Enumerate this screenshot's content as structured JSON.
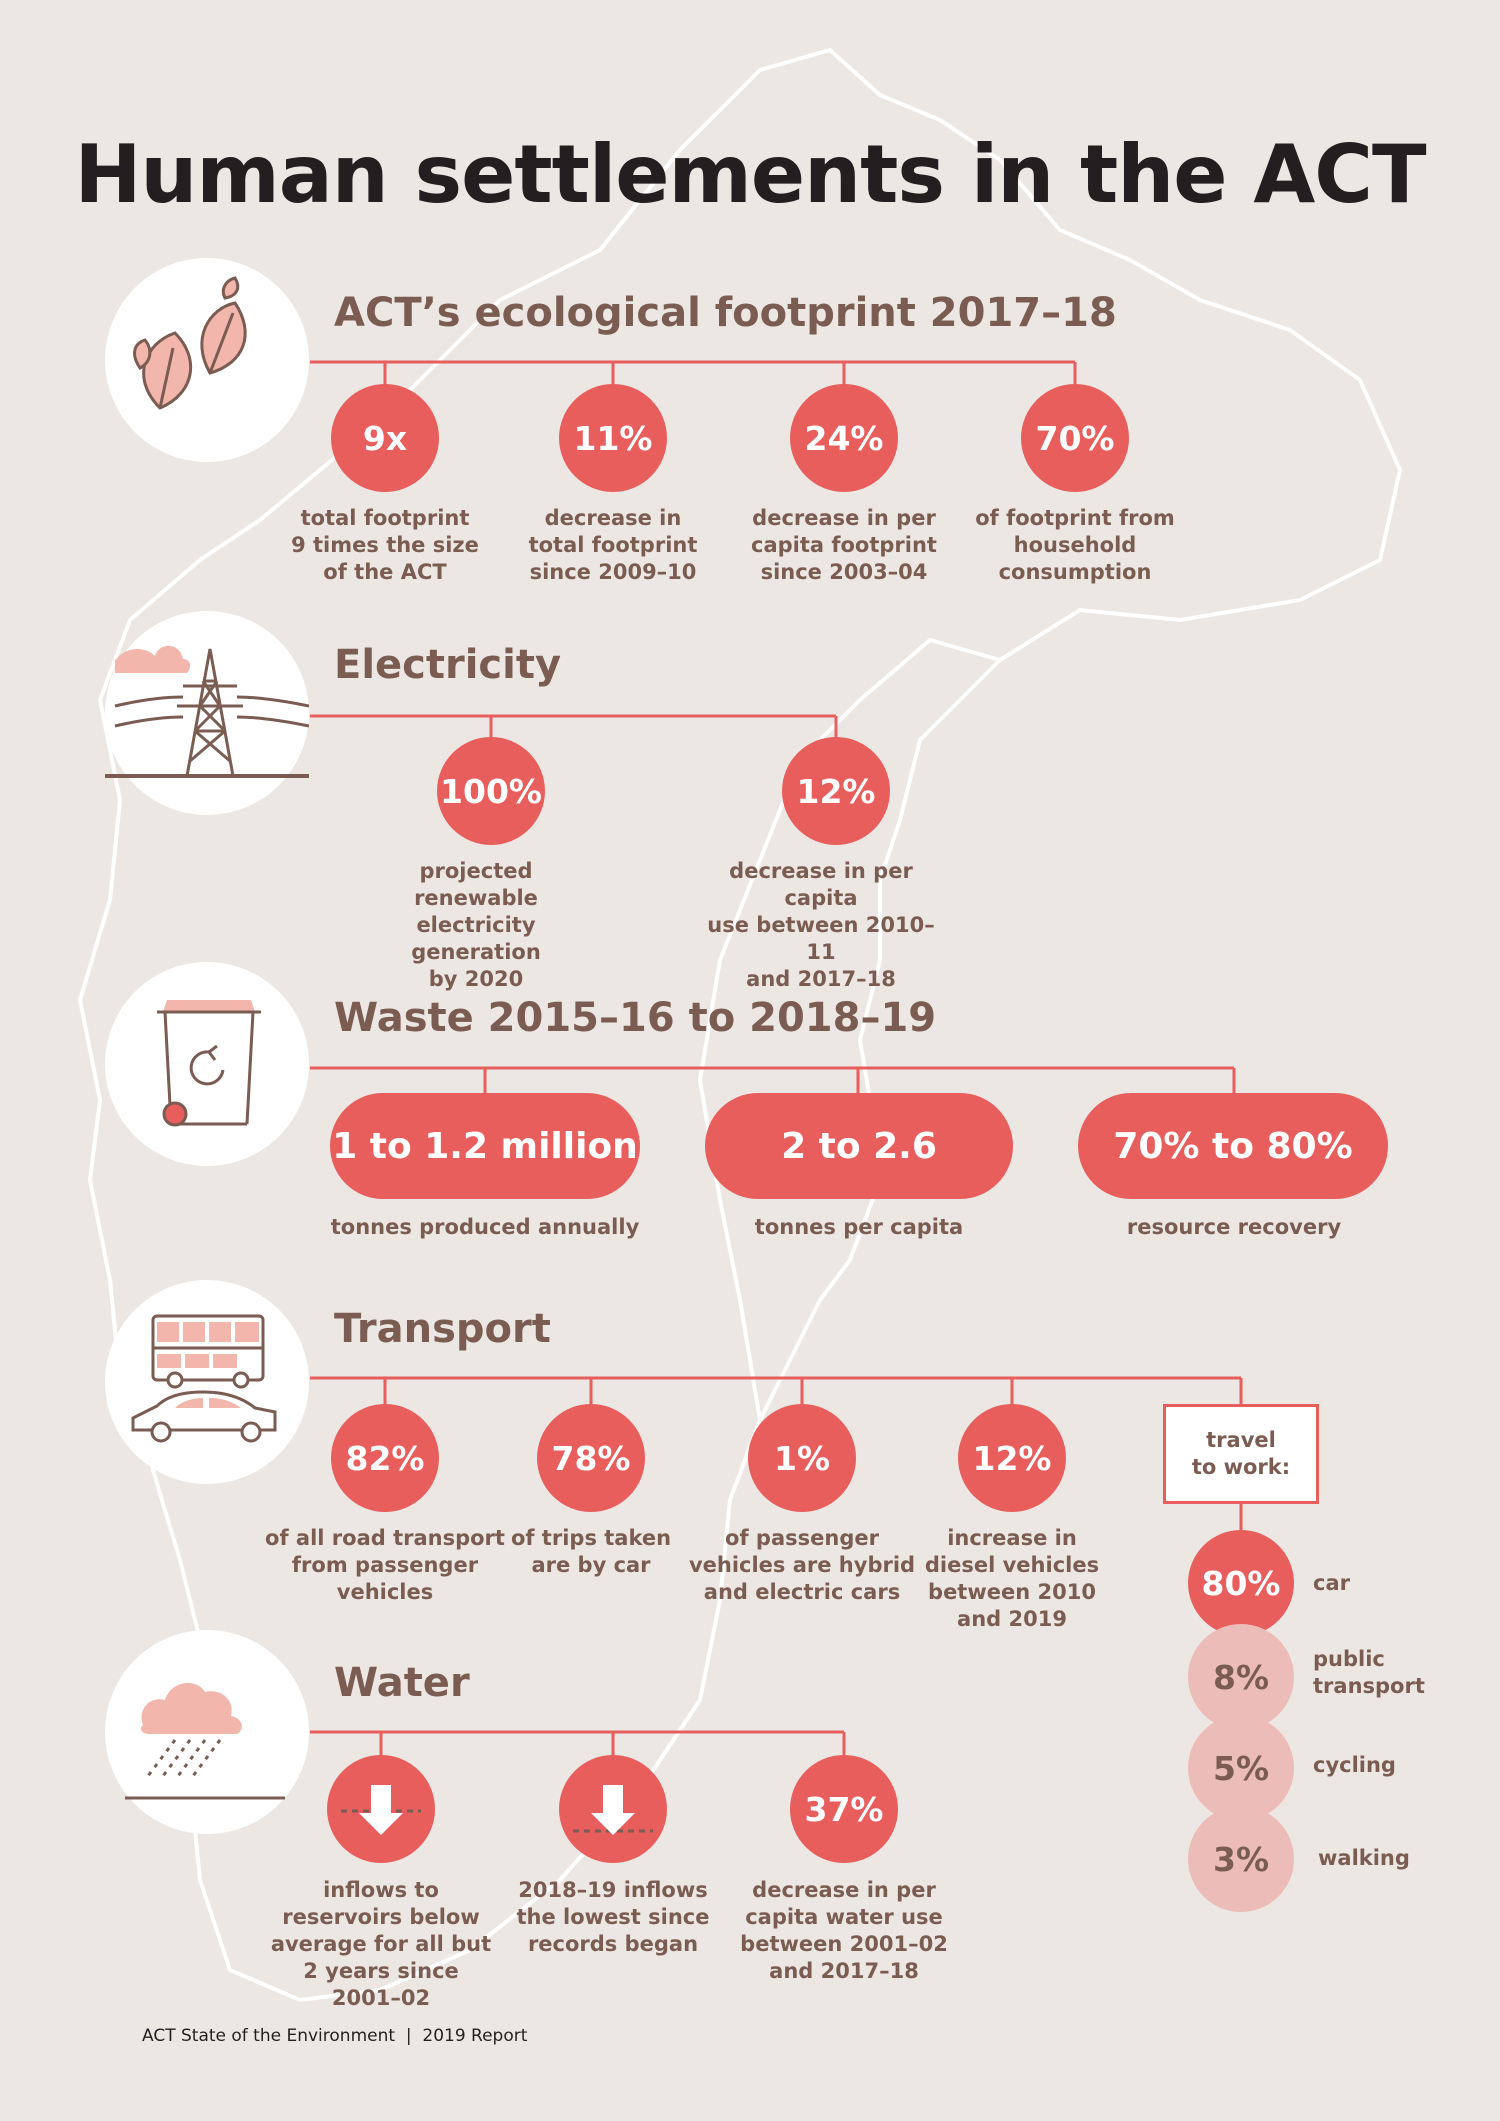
{
  "title": "Human settlements in the ACT",
  "colors": {
    "accent": "#e85e5c",
    "text": "#7a5c52",
    "background": "#ede7e4",
    "light_dot": "#ecbcb9"
  },
  "sections": {
    "footprint": {
      "title": "ACT’s ecological footprint 2017–18",
      "icon": "leaves-icon",
      "stats": [
        {
          "value": "9x",
          "label": "total footprint\n9 times the size\nof the ACT"
        },
        {
          "value": "11%",
          "label": "decrease in\ntotal footprint\nsince 2009–10"
        },
        {
          "value": "24%",
          "label": "decrease in per\ncapita footprint\nsince 2003–04"
        },
        {
          "value": "70%",
          "label": "of footprint from\nhousehold\nconsumption"
        }
      ]
    },
    "electricity": {
      "title": "Electricity",
      "icon": "power-pylon-icon",
      "stats": [
        {
          "value": "100%",
          "label": "projected renewable\nelectricity generation\nby 2020"
        },
        {
          "value": "12%",
          "label": "decrease in per capita\nuse between 2010–11\nand 2017–18"
        }
      ]
    },
    "waste": {
      "title": "Waste 2015–16 to 2018–19",
      "icon": "recycling-bin-icon",
      "stats": [
        {
          "value": "1 to 1.2 million",
          "label": "tonnes produced annually"
        },
        {
          "value": "2 to 2.6",
          "label": "tonnes per capita"
        },
        {
          "value": "70% to 80%",
          "label": "resource recovery"
        }
      ]
    },
    "transport": {
      "title": "Transport",
      "icon": "bus-and-car-icon",
      "stats": [
        {
          "value": "82%",
          "label": "of all road transport\nfrom passenger\nvehicles"
        },
        {
          "value": "78%",
          "label": "of trips taken\nare by car"
        },
        {
          "value": "1%",
          "label": "of passenger\nvehicles are hybrid\nand electric cars"
        },
        {
          "value": "12%",
          "label": "increase in\ndiesel vehicles\nbetween 2010\nand 2019"
        }
      ],
      "travel_to_work": {
        "heading": "travel\nto work:",
        "modes": [
          {
            "value": "80%",
            "label": "car",
            "share": 80
          },
          {
            "value": "8%",
            "label": "public\ntransport",
            "share": 8
          },
          {
            "value": "5%",
            "label": "cycling",
            "share": 5
          },
          {
            "value": "3%",
            "label": "walking",
            "share": 3
          }
        ]
      }
    },
    "water": {
      "title": "Water",
      "icon": "rain-cloud-icon",
      "stats": [
        {
          "value": "",
          "icon": "down-arrow-icon",
          "label": "inflows to\nreservoirs below\naverage for all but\n2 years since\n2001–02"
        },
        {
          "value": "",
          "icon": "down-arrow-icon",
          "label": "2018–19 inflows\nthe lowest since\nrecords began"
        },
        {
          "value": "37%",
          "label": "decrease in per\ncapita water use\nbetween 2001–02\nand 2017–18"
        }
      ]
    }
  },
  "footer": "ACT State of the Environment  |  2019 Report"
}
